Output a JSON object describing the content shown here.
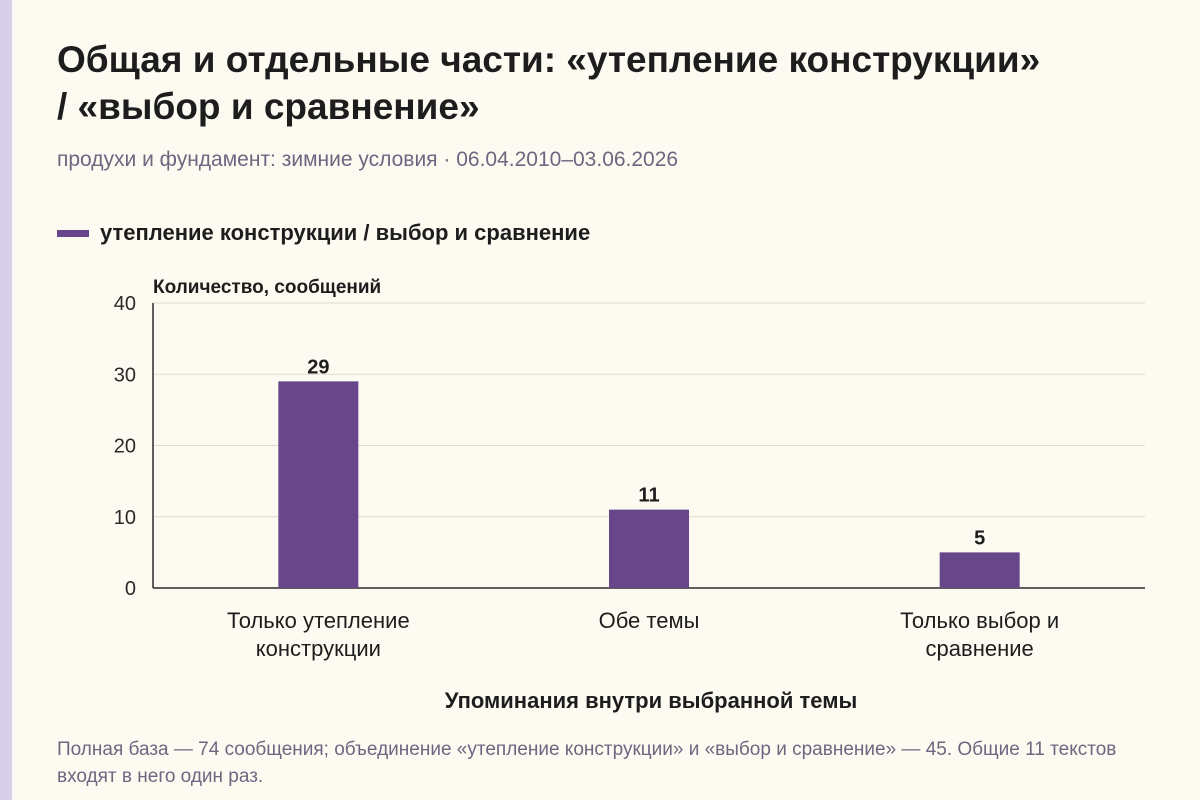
{
  "title": "Общая и отдельные части: «утепление конструкции» / «выбор и сравнение»",
  "subtitle": "продухи и фундамент: зимние условия · 06.04.2010–03.06.2026",
  "legend": {
    "label": "утепление конструкции / выбор и сравнение"
  },
  "footnote": "Полная база — 74 сообщения; объединение «утепление конструкции» и «выбор и сравнение» — 45. Общие 11 текстов входят в него один раз.",
  "colors": {
    "bar": "#674789",
    "grid": "#dedad0",
    "axis": "#2a2a2a",
    "background": "#fdfbf1"
  },
  "chart_data": {
    "type": "bar",
    "categories": [
      [
        "Только утепление",
        "конструкции"
      ],
      [
        "Обе темы"
      ],
      [
        "Только выбор и",
        "сравнение"
      ]
    ],
    "series": [
      {
        "name": "утепление конструкции / выбор и сравнение",
        "values": [
          29,
          11,
          5
        ]
      }
    ],
    "ylabel": "Количество, сообщений",
    "xlabel": "Упоминания внутри выбранной темы",
    "ylim": [
      0,
      40
    ],
    "yticks": [
      0,
      10,
      20,
      30,
      40
    ],
    "grid": true,
    "data_labels": true
  }
}
